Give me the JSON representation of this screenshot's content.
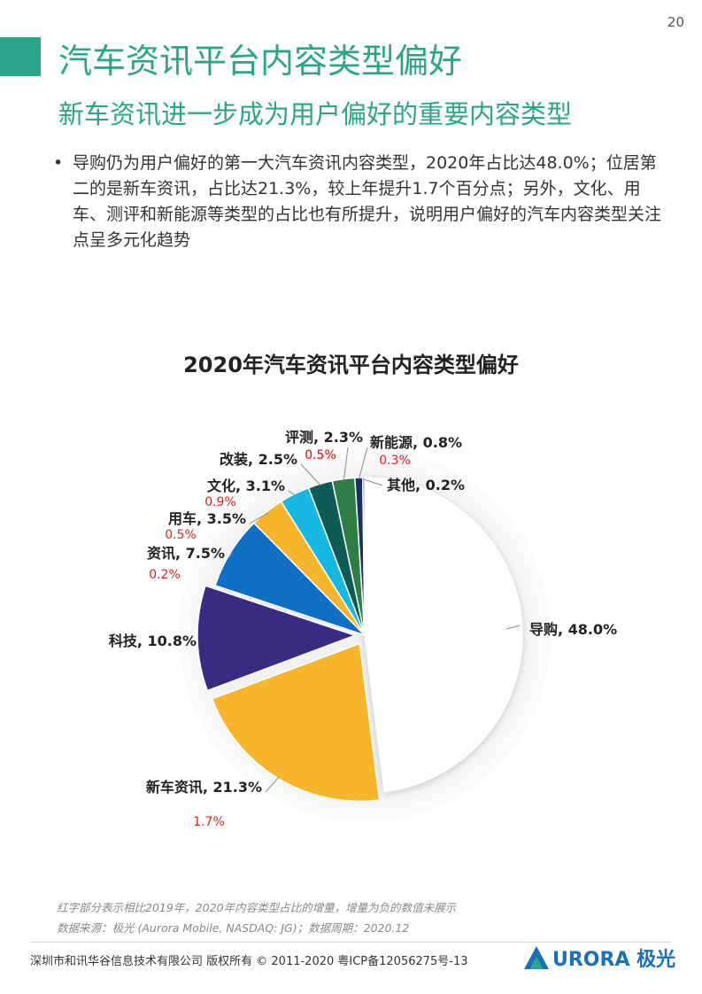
{
  "page": {
    "number": "20"
  },
  "header": {
    "title": "汽车资讯平台内容类型偏好",
    "subtitle": "新车资讯进一步成为用户偏好的重要内容类型"
  },
  "summary": {
    "bullet": "•",
    "text": "导购仍为用户偏好的第一大汽车资讯内容类型，2020年占比达48.0%；位居第二的是新车资讯，占比达21.3%，较上年提升1.7个百分点；另外，文化、用车、测评和新能源等类型的占比也有所提升，说明用户偏好的汽车内容类型关注点呈多元化趋势"
  },
  "chart_data": {
    "type": "pie",
    "title": "2020年汽车资讯平台内容类型偏好",
    "unit": "%",
    "slices": [
      {
        "label": "导购",
        "value": 48.0,
        "value_text": "48.0%",
        "color": "#ffffff",
        "exploded": false,
        "increase": null
      },
      {
        "label": "新车资讯",
        "value": 21.3,
        "value_text": "21.3%",
        "color": "#f7b52c",
        "exploded": true,
        "increase": "1.7%"
      },
      {
        "label": "科技",
        "value": 10.8,
        "value_text": "10.8%",
        "color": "#3b2a82",
        "exploded": true,
        "increase": null
      },
      {
        "label": "资讯",
        "value": 7.5,
        "value_text": "7.5%",
        "color": "#0f6fc6",
        "exploded": false,
        "increase": "0.2%"
      },
      {
        "label": "用车",
        "value": 3.5,
        "value_text": "3.5%",
        "color": "#f7b52c",
        "exploded": false,
        "increase": "0.5%"
      },
      {
        "label": "文化",
        "value": 3.1,
        "value_text": "3.1%",
        "color": "#16b7e0",
        "exploded": false,
        "increase": "0.9%"
      },
      {
        "label": "改装",
        "value": 2.5,
        "value_text": "2.5%",
        "color": "#0e5c55",
        "exploded": false,
        "increase": "0.5%"
      },
      {
        "label": "评测",
        "value": 2.3,
        "value_text": "2.3%",
        "color": "#2e7d45",
        "exploded": false,
        "increase": "0.5%"
      },
      {
        "label": "新能源",
        "value": 0.8,
        "value_text": "0.8%",
        "color": "#17325e",
        "exploded": false,
        "increase": "0.3%"
      },
      {
        "label": "其他",
        "value": 0.2,
        "value_text": "0.2%",
        "color": "#7a3b8c",
        "exploded": false,
        "increase": null
      }
    ],
    "increase_color": "#e02020",
    "watermark": "URORA 极光"
  },
  "footer": {
    "note": "红字部分表示相比2019年，2020年内容类型占比的增量，增量为负的数值未展示",
    "source": "数据来源：极光 (Aurora Mobile, NASDAQ: JG)；数据周期：2020.12",
    "copyright": "深圳市和讯华谷信息技术有限公司 版权所有 © 2011-2020 粤ICP备12056275号-13",
    "logo_text": "URORA 极光"
  }
}
